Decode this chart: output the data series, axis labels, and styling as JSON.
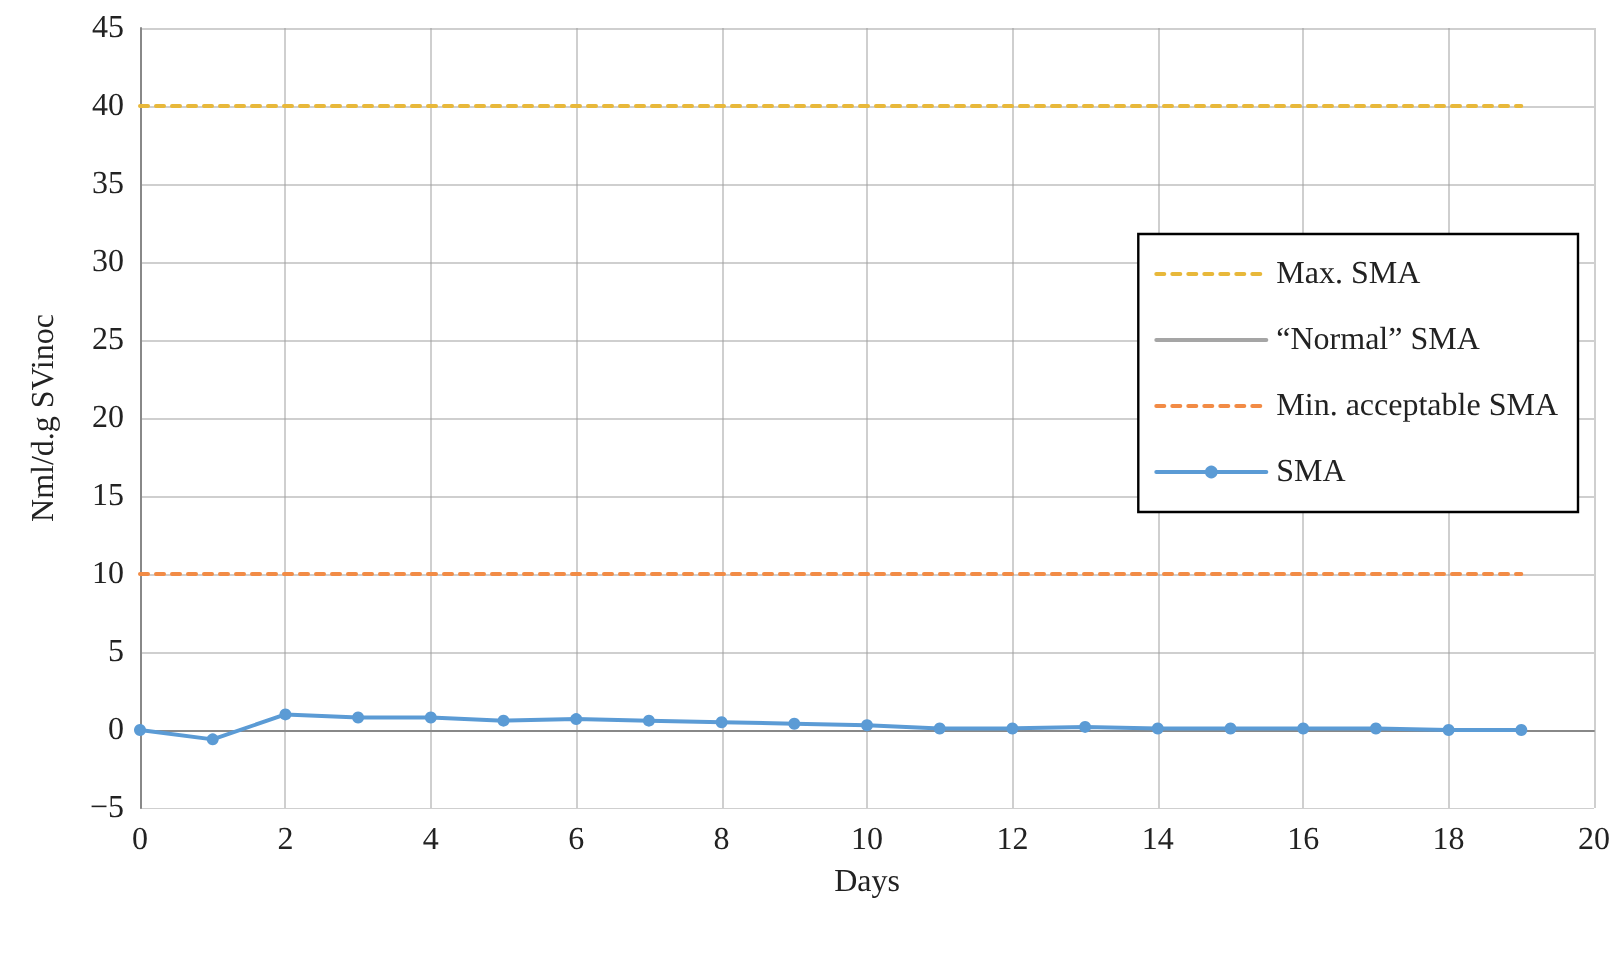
{
  "chart_data": {
    "type": "line",
    "xlabel": "Days",
    "ylabel": "Nml/d.g SVinoc",
    "x": [
      0,
      1,
      2,
      3,
      4,
      5,
      6,
      7,
      8,
      9,
      10,
      11,
      12,
      13,
      14,
      15,
      16,
      17,
      18,
      19
    ],
    "series": [
      {
        "name": "Max. SMA",
        "color": "#e8b83a",
        "line_style": "dashed",
        "marker": "none",
        "values": [
          40,
          40,
          40,
          40,
          40,
          40,
          40,
          40,
          40,
          40,
          40,
          40,
          40,
          40,
          40,
          40,
          40,
          40,
          40,
          40
        ]
      },
      {
        "name": "“Normal” SMA",
        "color": "#a5a5a5",
        "line_style": "solid",
        "marker": "none",
        "values": [
          null,
          null,
          null,
          null,
          null,
          null,
          null,
          null,
          null,
          null,
          null,
          null,
          null,
          null,
          null,
          null,
          null,
          null,
          null,
          null
        ]
      },
      {
        "name": "Min. acceptable SMA",
        "color": "#f28b45",
        "line_style": "dashed",
        "marker": "none",
        "values": [
          10,
          10,
          10,
          10,
          10,
          10,
          10,
          10,
          10,
          10,
          10,
          10,
          10,
          10,
          10,
          10,
          10,
          10,
          10,
          10
        ]
      },
      {
        "name": "SMA",
        "color": "#5b9bd5",
        "line_style": "solid",
        "marker": "circle",
        "values": [
          0,
          -0.6,
          1.0,
          0.8,
          0.8,
          0.6,
          0.7,
          0.6,
          0.5,
          0.4,
          0.3,
          0.1,
          0.1,
          0.2,
          0.1,
          0.1,
          0.1,
          0.1,
          0,
          0
        ]
      }
    ],
    "xlim": [
      0,
      20
    ],
    "xticks": [
      0,
      2,
      4,
      6,
      8,
      10,
      12,
      14,
      16,
      18,
      20
    ],
    "ylim": [
      -5,
      45
    ],
    "yticks": [
      {
        "value": -5,
        "label": "−5"
      },
      0,
      5,
      10,
      15,
      20,
      25,
      30,
      35,
      40,
      45
    ],
    "grid": true,
    "legend": "right"
  }
}
